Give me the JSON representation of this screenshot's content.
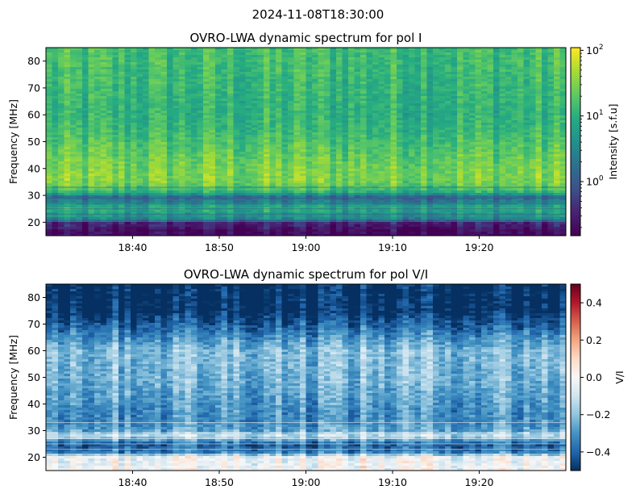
{
  "suptitle": "2024-11-08T18:30:00",
  "chart_data": [
    {
      "type": "heatmap",
      "title": "OVRO-LWA dynamic spectrum for pol I",
      "xlabel": "",
      "ylabel": "Frequency [MHz]",
      "x_ticks": [
        "18:40",
        "18:50",
        "19:00",
        "19:10",
        "19:20"
      ],
      "x_range": [
        "18:30",
        "19:30"
      ],
      "y_ticks": [
        20,
        30,
        40,
        50,
        60,
        70,
        80
      ],
      "ylim": [
        15,
        85
      ],
      "colormap": "viridis",
      "colorbar": {
        "label": "Intensity [s.f.u]",
        "scale": "log",
        "range": [
          0.15,
          110
        ],
        "ticks": [
          "10^0",
          "10^1",
          "10^2"
        ],
        "tick_values": [
          1,
          10,
          100
        ]
      },
      "profile": {
        "freq_mhz": [
          15,
          17,
          20,
          22,
          25,
          28,
          30,
          33,
          36,
          40,
          45,
          50,
          55,
          60,
          65,
          70,
          75,
          80,
          85
        ],
        "intensity": [
          0.18,
          0.2,
          0.35,
          4,
          8,
          2,
          1.6,
          20,
          30,
          28,
          22,
          16,
          12,
          10,
          11,
          12,
          13,
          14,
          14
        ]
      }
    },
    {
      "type": "heatmap",
      "title": "OVRO-LWA dynamic spectrum for pol V/I",
      "xlabel": "",
      "ylabel": "Frequency [MHz]",
      "x_ticks": [
        "18:40",
        "18:50",
        "19:00",
        "19:10",
        "19:20"
      ],
      "x_range": [
        "18:30",
        "19:30"
      ],
      "y_ticks": [
        20,
        30,
        40,
        50,
        60,
        70,
        80
      ],
      "ylim": [
        15,
        85
      ],
      "colormap": "RdBu_r",
      "colorbar": {
        "label": "V/I",
        "scale": "linear",
        "range": [
          -0.5,
          0.5
        ],
        "ticks": [
          "−0.4",
          "−0.2",
          "0.0",
          "0.2",
          "0.4"
        ],
        "tick_values": [
          -0.4,
          -0.2,
          0.0,
          0.2,
          0.4
        ]
      },
      "profile": {
        "freq_mhz": [
          15,
          20,
          22,
          25,
          28,
          30,
          33,
          36,
          40,
          50,
          60,
          65,
          70,
          75,
          80,
          85
        ],
        "v_over_i": [
          0.0,
          -0.02,
          -0.35,
          -0.4,
          -0.1,
          -0.25,
          -0.3,
          -0.3,
          -0.28,
          -0.22,
          -0.2,
          -0.3,
          -0.4,
          -0.5,
          -0.5,
          -0.5
        ]
      }
    }
  ]
}
